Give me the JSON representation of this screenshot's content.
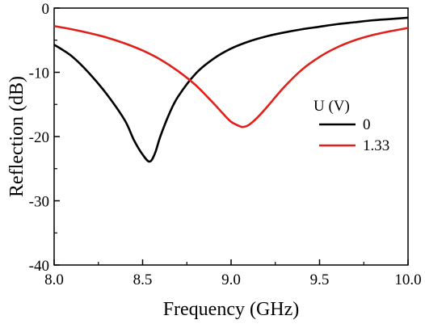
{
  "chart_data": {
    "type": "line",
    "xlabel": "Frequency (GHz)",
    "ylabel": "Reflection (dB)",
    "xlim": [
      8.0,
      10.0
    ],
    "ylim": [
      -40,
      0
    ],
    "xticks": [
      "8.0",
      "8.5",
      "9.0",
      "9.5",
      "10.0"
    ],
    "yticks": [
      "0",
      "-10",
      "-20",
      "-30",
      "-40"
    ],
    "grid": false,
    "legend": {
      "title": "U (V)",
      "placement": "right-center"
    },
    "series": [
      {
        "name": "0",
        "color": "#000000",
        "x": [
          8.0,
          8.1,
          8.2,
          8.3,
          8.4,
          8.45,
          8.5,
          8.54,
          8.57,
          8.6,
          8.65,
          8.7,
          8.8,
          8.9,
          9.0,
          9.1,
          9.2,
          9.3,
          9.4,
          9.5,
          9.6,
          9.7,
          9.8,
          9.9,
          10.0
        ],
        "values": [
          -5.7,
          -7.5,
          -10.2,
          -13.5,
          -17.5,
          -20.5,
          -22.8,
          -23.9,
          -22.6,
          -20.0,
          -16.5,
          -13.8,
          -10.2,
          -7.9,
          -6.3,
          -5.2,
          -4.4,
          -3.8,
          -3.3,
          -2.9,
          -2.5,
          -2.2,
          -1.9,
          -1.7,
          -1.5
        ]
      },
      {
        "name": "1.33",
        "color": "#e0201a",
        "x": [
          8.0,
          8.1,
          8.2,
          8.3,
          8.4,
          8.5,
          8.6,
          8.7,
          8.8,
          8.9,
          8.95,
          9.0,
          9.05,
          9.07,
          9.1,
          9.15,
          9.2,
          9.3,
          9.4,
          9.5,
          9.6,
          9.7,
          9.8,
          9.9,
          10.0
        ],
        "values": [
          -2.8,
          -3.3,
          -3.9,
          -4.6,
          -5.5,
          -6.6,
          -8.0,
          -9.8,
          -12.0,
          -14.8,
          -16.3,
          -17.7,
          -18.4,
          -18.5,
          -18.2,
          -17.0,
          -15.5,
          -12.3,
          -9.6,
          -7.6,
          -6.1,
          -5.0,
          -4.2,
          -3.6,
          -3.1
        ]
      }
    ]
  }
}
